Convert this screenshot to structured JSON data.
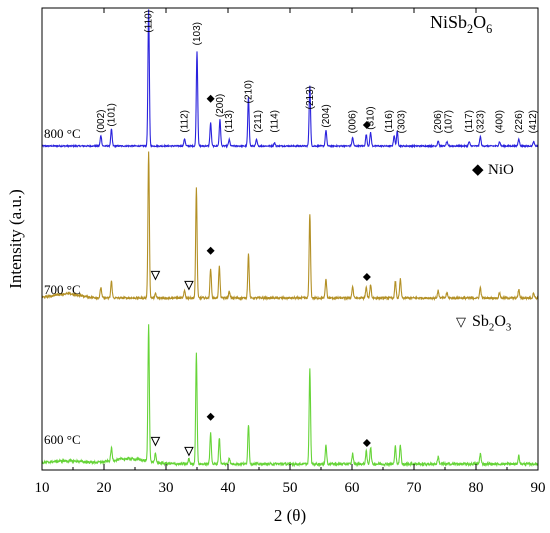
{
  "chart_data": {
    "type": "line",
    "title": "NiSb2O6",
    "xlabel": "2 (θ)",
    "ylabel": "Intensity  (a.u.)",
    "xlim": [
      10,
      90
    ],
    "xticks": [
      10,
      20,
      30,
      40,
      50,
      60,
      70,
      80,
      90
    ],
    "grid": false,
    "series": [
      {
        "name": "800 °C",
        "color": "#2a22dd",
        "baseline": 0.0,
        "peaks": [
          [
            19.5,
            0.1
          ],
          [
            21.2,
            0.16
          ],
          [
            27.2,
            1.3
          ],
          [
            33.0,
            0.07
          ],
          [
            35.0,
            0.9
          ],
          [
            37.2,
            0.22
          ],
          [
            38.7,
            0.25
          ],
          [
            40.2,
            0.06
          ],
          [
            43.3,
            0.46
          ],
          [
            44.6,
            0.06
          ],
          [
            47.5,
            0.03
          ],
          [
            53.2,
            0.58
          ],
          [
            55.8,
            0.15
          ],
          [
            60.1,
            0.08
          ],
          [
            62.3,
            0.11
          ],
          [
            63.0,
            0.13
          ],
          [
            66.8,
            0.1
          ],
          [
            67.3,
            0.14
          ],
          [
            73.9,
            0.05
          ],
          [
            75.3,
            0.04
          ],
          [
            78.9,
            0.04
          ],
          [
            80.7,
            0.09
          ],
          [
            83.8,
            0.04
          ],
          [
            86.9,
            0.07
          ],
          [
            89.3,
            0.04
          ]
        ]
      },
      {
        "name": "700 °C",
        "color": "#b39025",
        "baseline": 0.0,
        "peaks": [
          [
            19.5,
            0.1
          ],
          [
            21.2,
            0.16
          ],
          [
            27.2,
            1.4
          ],
          [
            28.3,
            0.04
          ],
          [
            33.0,
            0.07
          ],
          [
            34.9,
            1.05
          ],
          [
            37.2,
            0.28
          ],
          [
            38.6,
            0.3
          ],
          [
            40.2,
            0.06
          ],
          [
            43.3,
            0.42
          ],
          [
            53.2,
            0.8
          ],
          [
            55.8,
            0.18
          ],
          [
            60.1,
            0.11
          ],
          [
            62.3,
            0.1
          ],
          [
            63.0,
            0.13
          ],
          [
            67.0,
            0.16
          ],
          [
            67.8,
            0.18
          ],
          [
            73.9,
            0.07
          ],
          [
            75.3,
            0.05
          ],
          [
            80.7,
            0.1
          ],
          [
            83.8,
            0.05
          ],
          [
            86.9,
            0.08
          ],
          [
            89.3,
            0.05
          ]
        ]
      },
      {
        "name": "600 °C",
        "color": "#66d438",
        "baseline": 0.0,
        "peaks": [
          [
            21.2,
            0.12
          ],
          [
            27.2,
            1.3
          ],
          [
            28.3,
            0.08
          ],
          [
            33.7,
            0.05
          ],
          [
            34.9,
            1.05
          ],
          [
            37.2,
            0.3
          ],
          [
            38.6,
            0.25
          ],
          [
            40.2,
            0.06
          ],
          [
            43.3,
            0.38
          ],
          [
            53.2,
            0.9
          ],
          [
            55.8,
            0.18
          ],
          [
            60.1,
            0.1
          ],
          [
            62.3,
            0.12
          ],
          [
            63.0,
            0.16
          ],
          [
            67.0,
            0.17
          ],
          [
            67.8,
            0.18
          ],
          [
            73.9,
            0.07
          ],
          [
            80.7,
            0.1
          ],
          [
            86.9,
            0.08
          ]
        ]
      }
    ],
    "miller_indices": [
      {
        "label": "(002)",
        "x": 19.5
      },
      {
        "label": "(101)",
        "x": 21.2
      },
      {
        "label": "(110)",
        "x": 27.2
      },
      {
        "label": "(112)",
        "x": 33.0
      },
      {
        "label": "(103)",
        "x": 35.0
      },
      {
        "label": "(200)",
        "x": 38.7
      },
      {
        "label": "(113)",
        "x": 40.2
      },
      {
        "label": "(210)",
        "x": 43.3
      },
      {
        "label": "(211)",
        "x": 44.8
      },
      {
        "label": "(114)",
        "x": 47.5
      },
      {
        "label": "(213)",
        "x": 53.2
      },
      {
        "label": "(204)",
        "x": 55.8
      },
      {
        "label": "(006)",
        "x": 60.1
      },
      {
        "label": "(310)",
        "x": 63.0
      },
      {
        "label": "(116)",
        "x": 66.0
      },
      {
        "label": "(303)",
        "x": 68.0
      },
      {
        "label": "(206)",
        "x": 73.9
      },
      {
        "label": "(107)",
        "x": 75.6
      },
      {
        "label": "(117)",
        "x": 78.9
      },
      {
        "label": "(323)",
        "x": 80.7
      },
      {
        "label": "(400)",
        "x": 83.8
      },
      {
        "label": "(226)",
        "x": 86.9
      },
      {
        "label": "(412)",
        "x": 89.2
      }
    ],
    "nio_markers": [
      {
        "series": 0,
        "x": 37.2
      },
      {
        "series": 0,
        "x": 62.4
      },
      {
        "series": 1,
        "x": 37.2
      },
      {
        "series": 1,
        "x": 62.4
      },
      {
        "series": 2,
        "x": 37.2
      },
      {
        "series": 2,
        "x": 62.4
      }
    ],
    "sb2o3_markers": [
      {
        "series": 1,
        "x": 28.3
      },
      {
        "series": 1,
        "x": 33.7
      },
      {
        "series": 2,
        "x": 28.3
      },
      {
        "series": 2,
        "x": 33.7
      }
    ],
    "legend": [
      {
        "symbol": "◆",
        "text": "NiO"
      },
      {
        "symbol": "▽",
        "text": "Sb2O3"
      }
    ]
  }
}
